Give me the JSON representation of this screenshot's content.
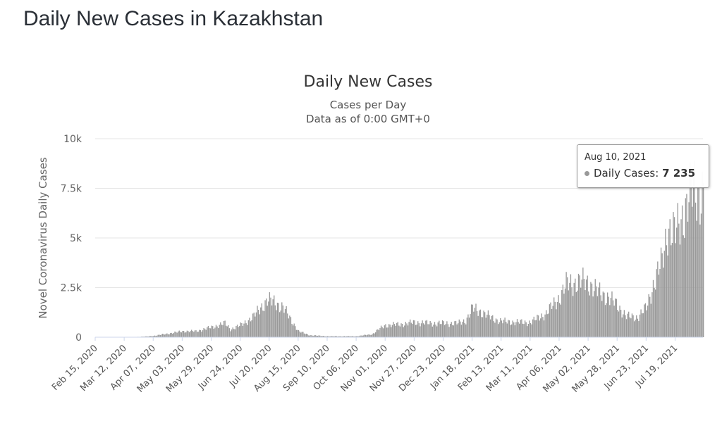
{
  "page": {
    "heading": "Daily New Cases in Kazakhstan"
  },
  "chart_data": {
    "type": "bar",
    "title": "Daily New Cases",
    "subtitle_lines": [
      "Cases per Day",
      "Data as of 0:00 GMT+0"
    ],
    "ylabel": "Novel Coronavirus Daily Cases",
    "xlabel": "",
    "ylim": [
      0,
      10000
    ],
    "yticks": [
      0,
      2500,
      5000,
      7500,
      10000
    ],
    "ytick_labels": [
      "0",
      "2.5k",
      "5k",
      "7.5k",
      "10k"
    ],
    "x_range": [
      "2020-02-15",
      "2021-08-13"
    ],
    "xtick_labels": [
      "Feb 15, 2020",
      "Mar 12, 2020",
      "Apr 07, 2020",
      "May 03, 2020",
      "May 29, 2020",
      "Jun 24, 2020",
      "Jul 20, 2020",
      "Aug 15, 2020",
      "Sep 10, 2020",
      "Oct 06, 2020",
      "Nov 01, 2020",
      "Nov 27, 2020",
      "Dec 23, 2020",
      "Jan 18, 2021",
      "Feb 13, 2021",
      "Mar 11, 2021",
      "Apr 06, 2021",
      "May 02, 2021",
      "May 28, 2021",
      "Jun 23, 2021",
      "Jul 19, 2021"
    ],
    "series_color": "#999999",
    "grid": true,
    "legend": "none",
    "series": [
      {
        "points": [
          [
            "2020-02-15",
            0
          ],
          [
            "2020-03-12",
            0
          ],
          [
            "2020-03-20",
            10
          ],
          [
            "2020-04-01",
            40
          ],
          [
            "2020-04-07",
            70
          ],
          [
            "2020-04-20",
            180
          ],
          [
            "2020-05-03",
            300
          ],
          [
            "2020-05-15",
            300
          ],
          [
            "2020-05-29",
            500
          ],
          [
            "2020-06-10",
            700
          ],
          [
            "2020-06-15",
            400
          ],
          [
            "2020-06-24",
            600
          ],
          [
            "2020-07-05",
            1000
          ],
          [
            "2020-07-12",
            1500
          ],
          [
            "2020-07-18",
            1850
          ],
          [
            "2020-07-25",
            1750
          ],
          [
            "2020-08-01",
            1500
          ],
          [
            "2020-08-08",
            900
          ],
          [
            "2020-08-15",
            300
          ],
          [
            "2020-08-25",
            100
          ],
          [
            "2020-09-10",
            50
          ],
          [
            "2020-10-06",
            50
          ],
          [
            "2020-10-20",
            150
          ],
          [
            "2020-10-26",
            400
          ],
          [
            "2020-11-01",
            600
          ],
          [
            "2020-11-15",
            650
          ],
          [
            "2020-11-27",
            750
          ],
          [
            "2020-12-10",
            700
          ],
          [
            "2020-12-23",
            700
          ],
          [
            "2021-01-05",
            700
          ],
          [
            "2021-01-12",
            850
          ],
          [
            "2021-01-18",
            1450
          ],
          [
            "2021-01-25",
            1300
          ],
          [
            "2021-02-05",
            950
          ],
          [
            "2021-02-13",
            800
          ],
          [
            "2021-03-01",
            750
          ],
          [
            "2021-03-11",
            750
          ],
          [
            "2021-03-25",
            1200
          ],
          [
            "2021-04-06",
            2000
          ],
          [
            "2021-04-12",
            2650
          ],
          [
            "2021-04-20",
            2750
          ],
          [
            "2021-04-28",
            2800
          ],
          [
            "2021-05-02",
            2750
          ],
          [
            "2021-05-10",
            2300
          ],
          [
            "2021-05-20",
            2000
          ],
          [
            "2021-05-28",
            1600
          ],
          [
            "2021-06-05",
            1050
          ],
          [
            "2021-06-15",
            1000
          ],
          [
            "2021-06-23",
            1500
          ],
          [
            "2021-06-30",
            2800
          ],
          [
            "2021-07-07",
            3800
          ],
          [
            "2021-07-12",
            5500
          ],
          [
            "2021-07-19",
            5200
          ],
          [
            "2021-07-28",
            6500
          ],
          [
            "2021-08-04",
            7500
          ],
          [
            "2021-08-10",
            7235
          ],
          [
            "2021-08-13",
            7300
          ]
        ]
      }
    ],
    "tooltip": {
      "date": "Aug 10, 2021",
      "label": "Daily Cases: ",
      "value": "7 235"
    }
  }
}
